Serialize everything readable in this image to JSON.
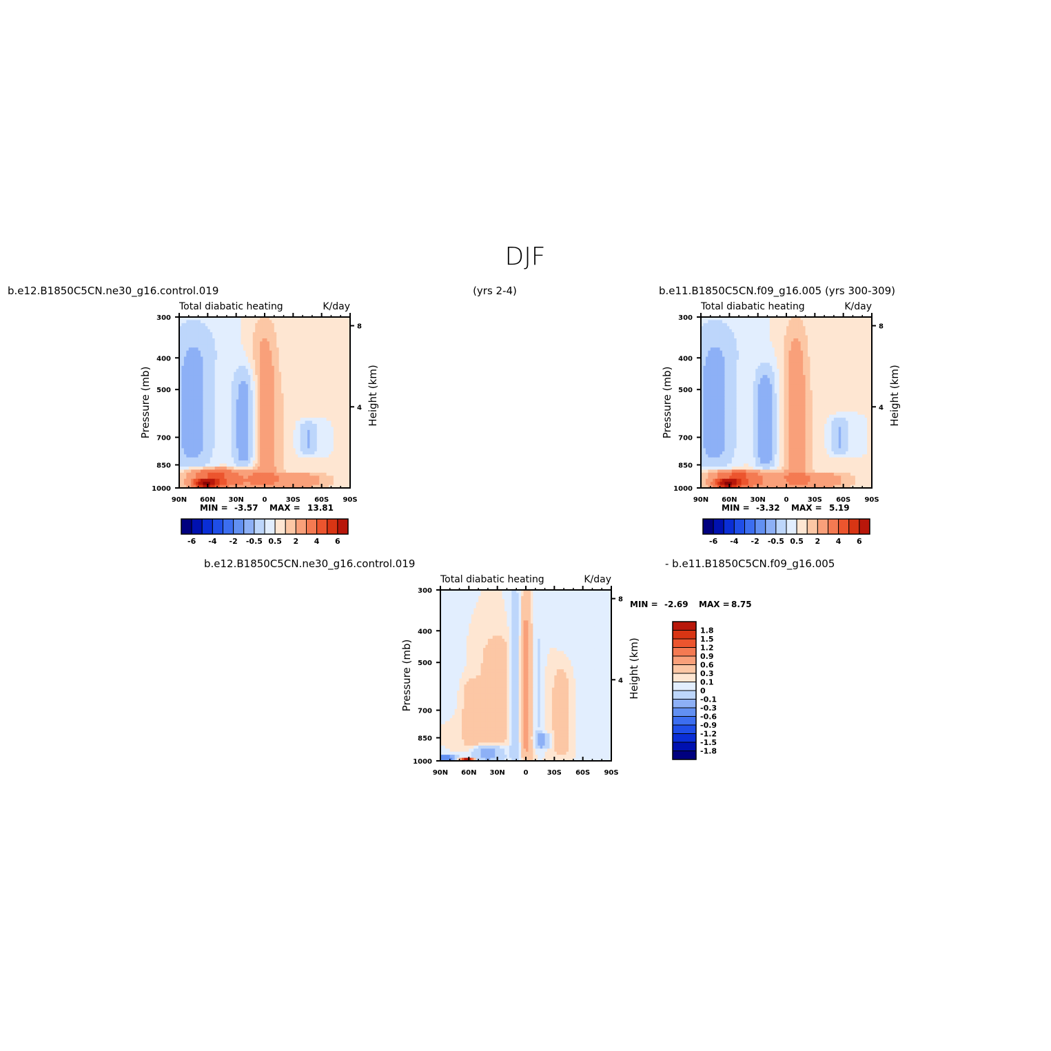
{
  "figure": {
    "title": "DJF",
    "case1": "b.e12.B1850C5CN.ne30_g16.control.019",
    "case1_years": "(yrs 2-4)",
    "case2": "b.e11.B1850C5CN.f09_g16.005 (yrs 300-309)",
    "diff_case1": "b.e12.B1850C5CN.ne30_g16.control.019",
    "diff_case2": "- b.e11.B1850C5CN.f09_g16.005"
  },
  "chart_data": [
    {
      "type": "heatmap",
      "id": "case1",
      "title": "Total diabatic heating",
      "units": "K/day",
      "xlabel": "",
      "ylabel": "Pressure (mb)",
      "ylabel_right": "Height (km)",
      "x_ticks": [
        "90N",
        "60N",
        "30N",
        "0",
        "30S",
        "60S",
        "90S"
      ],
      "x_values": [
        90,
        60,
        30,
        0,
        -30,
        -60,
        -90
      ],
      "y_ticks": [
        300,
        400,
        500,
        700,
        850,
        1000
      ],
      "y_right_ticks": [
        8,
        4
      ],
      "min_label": "MIN =",
      "min_value": "-3.57",
      "max_label": "MAX =",
      "max_value": "13.81",
      "levels": [
        -6,
        -5,
        -4,
        -3,
        -2,
        -1,
        -0.5,
        0,
        0.5,
        1,
        2,
        3,
        4,
        5,
        6
      ],
      "colorbar_labels": [
        "-6",
        "-4",
        "-2",
        "-0.5",
        "0.5",
        "2",
        "4",
        "6"
      ],
      "colors": [
        "#00007f",
        "#0011b0",
        "#0a2ed6",
        "#1f4ee8",
        "#3c6ef0",
        "#6290f2",
        "#8db0f6",
        "#bdd6fb",
        "#e2eefe",
        "#fee6d2",
        "#fcc7a5",
        "#f9a07a",
        "#f47a52",
        "#ec552e",
        "#d83514",
        "#b8170a",
        "#8a0404"
      ],
      "features": [
        {
          "lat": 0,
          "bottom": 1000,
          "top": 300,
          "width": 15,
          "value": 1.5
        },
        {
          "lat": -30,
          "bottom": 1000,
          "top": 450,
          "width": 22,
          "value": 0.3
        },
        {
          "lat": 45,
          "bottom": 1000,
          "top": 400,
          "width": 14,
          "value": 0.3
        },
        {
          "lat": 20,
          "bottom": 880,
          "top": 420,
          "width": 14,
          "value": -1.5
        },
        {
          "lat": -45,
          "bottom": 800,
          "top": 620,
          "width": 12,
          "value": -1.2
        },
        {
          "lat": 75,
          "bottom": 880,
          "top": 300,
          "width": 30,
          "value": -1.2
        },
        {
          "lat": 60,
          "bottom": 1000,
          "top": 870,
          "width": 25,
          "value": 2.5
        },
        {
          "lat": 30,
          "bottom": 1000,
          "top": 870,
          "width": 30,
          "value": 1.5
        },
        {
          "lat": -30,
          "bottom": 1000,
          "top": 900,
          "width": 40,
          "value": 1.5
        },
        {
          "lat": 62,
          "bottom": 1000,
          "top": 940,
          "width": 12,
          "value": 3.5
        }
      ]
    },
    {
      "type": "heatmap",
      "id": "case2",
      "title": "Total diabatic heating",
      "units": "K/day",
      "xlabel": "",
      "ylabel": "Pressure (mb)",
      "ylabel_right": "Height (km)",
      "x_ticks": [
        "90N",
        "60N",
        "30N",
        "0",
        "30S",
        "60S",
        "90S"
      ],
      "x_values": [
        90,
        60,
        30,
        0,
        -30,
        -60,
        -90
      ],
      "y_ticks": [
        300,
        400,
        500,
        700,
        850,
        1000
      ],
      "y_right_ticks": [
        8,
        4
      ],
      "min_label": "MIN =",
      "min_value": "-3.32",
      "max_label": "MAX =",
      "max_value": "5.19",
      "levels": [
        -6,
        -5,
        -4,
        -3,
        -2,
        -1,
        -0.5,
        0,
        0.5,
        1,
        2,
        3,
        4,
        5,
        6
      ],
      "colorbar_labels": [
        "-6",
        "-4",
        "-2",
        "-0.5",
        "0.5",
        "2",
        "4",
        "6"
      ],
      "colors": [
        "#00007f",
        "#0011b0",
        "#0a2ed6",
        "#1f4ee8",
        "#3c6ef0",
        "#6290f2",
        "#8db0f6",
        "#bdd6fb",
        "#e2eefe",
        "#fee6d2",
        "#fcc7a5",
        "#f9a07a",
        "#f47a52",
        "#ec552e",
        "#d83514",
        "#b8170a",
        "#8a0404"
      ],
      "features": [
        {
          "lat": -10,
          "bottom": 1000,
          "top": 300,
          "width": 14,
          "value": 1.5
        },
        {
          "lat": -40,
          "bottom": 1000,
          "top": 480,
          "width": 20,
          "value": 0.3
        },
        {
          "lat": 45,
          "bottom": 1000,
          "top": 400,
          "width": 14,
          "value": 0.3
        },
        {
          "lat": 22,
          "bottom": 880,
          "top": 420,
          "width": 12,
          "value": -1.5
        },
        {
          "lat": -55,
          "bottom": 800,
          "top": 600,
          "width": 12,
          "value": -1.2
        },
        {
          "lat": 75,
          "bottom": 880,
          "top": 300,
          "width": 30,
          "value": -1.2
        },
        {
          "lat": 60,
          "bottom": 1000,
          "top": 880,
          "width": 25,
          "value": 2.5
        },
        {
          "lat": 30,
          "bottom": 1000,
          "top": 880,
          "width": 30,
          "value": 1.5
        },
        {
          "lat": -30,
          "bottom": 1000,
          "top": 900,
          "width": 40,
          "value": 1.5
        },
        {
          "lat": 62,
          "bottom": 1000,
          "top": 940,
          "width": 12,
          "value": 3.5
        }
      ]
    },
    {
      "type": "heatmap",
      "id": "difference",
      "title": "Total diabatic heating",
      "units": "K/day",
      "xlabel": "",
      "ylabel": "Pressure (mb)",
      "ylabel_right": "Height (km)",
      "x_ticks": [
        "90N",
        "60N",
        "30N",
        "0",
        "30S",
        "60S",
        "90S"
      ],
      "x_values": [
        90,
        60,
        30,
        0,
        -30,
        -60,
        -90
      ],
      "y_ticks": [
        300,
        400,
        500,
        700,
        850,
        1000
      ],
      "y_right_ticks": [
        8,
        4
      ],
      "min_label": "MIN =",
      "min_value": "-2.69",
      "max_label": "MAX =",
      "max_value": "8.75",
      "levels": [
        -1.8,
        -1.5,
        -1.2,
        -0.9,
        -0.6,
        -0.3,
        -0.1,
        0,
        0.1,
        0.3,
        0.6,
        0.9,
        1.2,
        1.5,
        1.8
      ],
      "colorbar_labels": [
        "1.8",
        "1.5",
        "1.2",
        "0.9",
        "0.6",
        "0.3",
        "0.1",
        "0",
        "-0.1",
        "-0.3",
        "-0.6",
        "-0.9",
        "-1.2",
        "-1.5",
        "-1.8"
      ],
      "colors": [
        "#00007f",
        "#0011b0",
        "#0a2ed6",
        "#1f4ee8",
        "#3c6ef0",
        "#6290f2",
        "#8db0f6",
        "#bdd6fb",
        "#e2eefe",
        "#fee6d2",
        "#fcc7a5",
        "#f9a07a",
        "#f47a52",
        "#ec552e",
        "#d83514",
        "#b8170a",
        "#8a0404"
      ],
      "features": [
        {
          "lat": 0,
          "bottom": 1000,
          "top": 300,
          "width": 9,
          "value": 0.45
        },
        {
          "lat": 10,
          "bottom": 1000,
          "top": 300,
          "width": 6,
          "value": -0.45
        },
        {
          "lat": -10,
          "bottom": 950,
          "top": 300,
          "width": 7,
          "value": -0.2
        },
        {
          "lat": -38,
          "bottom": 980,
          "top": 500,
          "width": 12,
          "value": 0.2
        },
        {
          "lat": 30,
          "bottom": 900,
          "top": 400,
          "width": 20,
          "value": 0.2
        },
        {
          "lat": 58,
          "bottom": 930,
          "top": 560,
          "width": 10,
          "value": 0.2
        },
        {
          "lat": -55,
          "bottom": 1000,
          "top": 300,
          "width": 18,
          "value": -0.05
        },
        {
          "lat": 80,
          "bottom": 700,
          "top": 300,
          "width": 14,
          "value": -0.05
        },
        {
          "lat": 40,
          "bottom": 1000,
          "top": 900,
          "width": 16,
          "value": -0.4
        },
        {
          "lat": -18,
          "bottom": 920,
          "top": 820,
          "width": 8,
          "value": -0.35
        },
        {
          "lat": 84,
          "bottom": 1000,
          "top": 960,
          "width": 10,
          "value": -0.8
        },
        {
          "lat": 62,
          "bottom": 1000,
          "top": 975,
          "width": 6,
          "value": 1.8
        }
      ]
    }
  ]
}
